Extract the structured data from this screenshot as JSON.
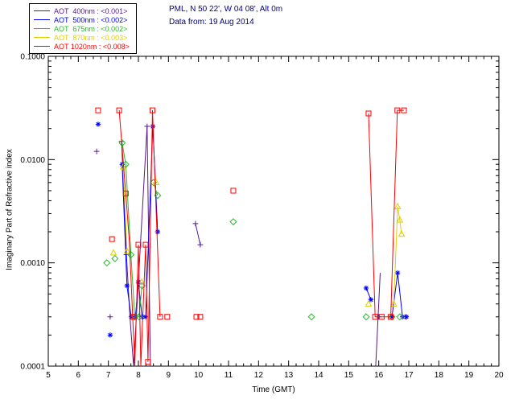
{
  "ui": {
    "header": {
      "line1": "PML, N 50 22', W 04 08', Alt 0m",
      "line2": "Data from: 19 Aug 2014"
    }
  },
  "chart_data": {
    "type": "scatter",
    "title": "PML, N 50 22', W 04 08', Alt 0m",
    "subtitle": "Data from: 19 Aug 2014",
    "xlabel": "Time (GMT)",
    "ylabel": "Imaginary Part of Refractive index",
    "xlim": [
      5,
      20
    ],
    "ylim": [
      0.0001,
      0.1
    ],
    "yscale": "log",
    "grid": false,
    "legend_position": "top-left",
    "xticks": [
      5,
      6,
      7,
      8,
      9,
      10,
      11,
      12,
      13,
      14,
      15,
      16,
      17,
      18,
      19,
      20
    ],
    "yticks": [
      0.0001,
      0.001,
      0.01,
      0.1
    ],
    "ytick_labels": [
      "0.0001",
      "0.0010",
      "0.0100",
      "0.1000"
    ],
    "header_color": "#000080",
    "series": [
      {
        "name": "AOT 400nm",
        "legend_label": "AOT  400nm",
        "threshold": "<0.001>",
        "color": "#551a8b",
        "marker": "plus",
        "points": [
          [
            6.61,
            0.012
          ],
          [
            7.06,
            0.0003
          ],
          [
            7.44,
            0.015
          ],
          [
            7.6,
            0.0012
          ],
          [
            8.29,
            0.021
          ],
          [
            9.9,
            0.0024
          ],
          [
            10.06,
            0.0015
          ],
          [
            16.0,
            0.0003
          ],
          [
            16.9,
            0.0003
          ]
        ],
        "lines": [
          [
            [
              7.44,
              0.015
            ],
            [
              7.6,
              0.0012
            ],
            [
              7.72,
              0.0003
            ],
            [
              7.84,
              0.0001
            ],
            [
              8.29,
              0.021
            ],
            [
              8.4,
              0.0001
            ]
          ],
          [
            [
              9.9,
              0.0024
            ],
            [
              10.06,
              0.0015
            ]
          ],
          [
            [
              15.9,
              0.0001
            ],
            [
              16.05,
              0.0008
            ]
          ]
        ]
      },
      {
        "name": "AOT 500nm",
        "legend_label": "AOT  500nm",
        "threshold": "<0.002>",
        "color": "#0000ff",
        "marker": "asterisk",
        "points": [
          [
            6.66,
            0.022
          ],
          [
            7.06,
            0.0002
          ],
          [
            7.46,
            0.009
          ],
          [
            7.62,
            0.0006
          ],
          [
            7.76,
            0.0003
          ],
          [
            7.9,
            0.0003
          ],
          [
            8.0,
            0.00065
          ],
          [
            8.12,
            0.0003
          ],
          [
            8.24,
            0.0003
          ],
          [
            8.48,
            0.021
          ],
          [
            8.64,
            0.002
          ],
          [
            15.58,
            0.00057
          ],
          [
            15.74,
            0.00044
          ],
          [
            16.44,
            0.0003
          ],
          [
            16.63,
            0.0008
          ],
          [
            16.79,
            0.0003
          ],
          [
            16.92,
            0.0003
          ]
        ],
        "lines": [
          [
            [
              7.46,
              0.009
            ],
            [
              7.62,
              0.0006
            ],
            [
              7.76,
              0.0003
            ],
            [
              7.9,
              0.0003
            ],
            [
              8.0,
              0.00065
            ],
            [
              8.12,
              0.0003
            ],
            [
              8.24,
              0.0003
            ],
            [
              8.48,
              0.021
            ],
            [
              8.64,
              0.002
            ]
          ],
          [
            [
              15.58,
              0.00057
            ],
            [
              15.74,
              0.00044
            ]
          ],
          [
            [
              16.44,
              0.0003
            ],
            [
              16.63,
              0.0008
            ],
            [
              16.79,
              0.0003
            ]
          ]
        ]
      },
      {
        "name": "AOT 675nm",
        "legend_label": "AOT  675nm",
        "threshold": "<0.002>",
        "color": "#2eb82e",
        "marker": "diamond",
        "points": [
          [
            6.95,
            0.001
          ],
          [
            7.22,
            0.0011
          ],
          [
            7.46,
            0.0145
          ],
          [
            7.58,
            0.009
          ],
          [
            7.75,
            0.0012
          ],
          [
            7.88,
            0.0003
          ],
          [
            8.02,
            0.0003
          ],
          [
            8.12,
            0.0006
          ],
          [
            8.5,
            0.006
          ],
          [
            8.64,
            0.0045
          ],
          [
            11.16,
            0.0025
          ],
          [
            13.76,
            0.0003
          ],
          [
            15.58,
            0.0003
          ],
          [
            16.44,
            0.0003
          ],
          [
            16.7,
            0.0003
          ]
        ],
        "lines": [
          [
            [
              7.46,
              0.0145
            ],
            [
              7.58,
              0.009
            ],
            [
              7.75,
              0.0012
            ],
            [
              7.88,
              0.0003
            ],
            [
              8.02,
              0.0003
            ],
            [
              8.12,
              0.0006
            ]
          ],
          [
            [
              8.5,
              0.006
            ],
            [
              8.64,
              0.0045
            ]
          ]
        ]
      },
      {
        "name": "AOT 870nm",
        "legend_label": "AOT  870nm",
        "threshold": "<0.003>",
        "color": "#e3cf00",
        "marker": "triangle",
        "points": [
          [
            7.17,
            0.00125
          ],
          [
            7.49,
            0.0085
          ],
          [
            7.62,
            0.0013
          ],
          [
            8.11,
            0.00065
          ],
          [
            8.59,
            0.006
          ],
          [
            15.66,
            0.0004
          ],
          [
            16.5,
            0.0004
          ],
          [
            16.63,
            0.0035
          ],
          [
            16.7,
            0.0026
          ],
          [
            16.76,
            0.0019
          ]
        ],
        "lines": [
          [
            [
              7.49,
              0.0085
            ],
            [
              7.62,
              0.0013
            ]
          ],
          [
            [
              16.5,
              0.0004
            ],
            [
              16.63,
              0.0035
            ],
            [
              16.7,
              0.0026
            ],
            [
              16.76,
              0.0019
            ]
          ]
        ]
      },
      {
        "name": "AOT 1020nm",
        "legend_label": "AOT 1020nm",
        "threshold": "<0.008>",
        "color": "#ff0000",
        "marker": "square",
        "points": [
          [
            6.66,
            0.03
          ],
          [
            7.12,
            0.0017
          ],
          [
            7.36,
            0.03
          ],
          [
            7.58,
            0.0047
          ],
          [
            7.81,
            0.0003
          ],
          [
            8.0,
            0.0015
          ],
          [
            8.24,
            0.0015
          ],
          [
            8.32,
            0.00011
          ],
          [
            8.47,
            0.03
          ],
          [
            8.72,
            0.0003
          ],
          [
            8.96,
            0.0003
          ],
          [
            9.93,
            0.0003
          ],
          [
            10.06,
            0.0003
          ],
          [
            11.16,
            0.005
          ],
          [
            15.66,
            0.028
          ],
          [
            15.88,
            0.0003
          ],
          [
            16.1,
            0.0003
          ],
          [
            16.4,
            0.0003
          ],
          [
            16.62,
            0.03
          ],
          [
            16.84,
            0.03
          ]
        ],
        "lines": [
          [
            [
              7.36,
              0.03
            ],
            [
              7.58,
              0.0047
            ],
            [
              7.7,
              0.0016
            ],
            [
              7.81,
              0.0003
            ],
            [
              7.88,
              0.0001
            ],
            [
              8.0,
              0.0015
            ],
            [
              8.08,
              0.0001
            ],
            [
              8.24,
              0.0015
            ],
            [
              8.32,
              0.00011
            ],
            [
              8.47,
              0.03
            ],
            [
              8.72,
              0.0003
            ]
          ],
          [
            [
              15.66,
              0.028
            ],
            [
              15.88,
              0.0003
            ],
            [
              16.1,
              0.0003
            ],
            [
              16.4,
              0.0003
            ],
            [
              16.62,
              0.03
            ],
            [
              16.84,
              0.03
            ]
          ]
        ]
      }
    ]
  }
}
